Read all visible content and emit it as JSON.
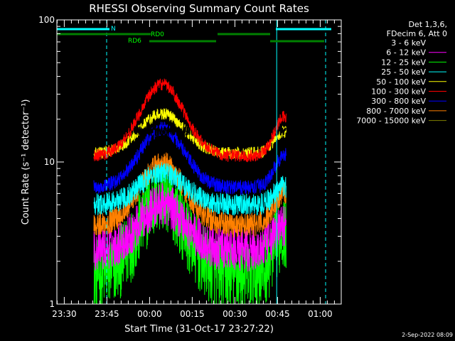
{
  "chart_data": {
    "type": "line",
    "title": "RHESSI Observing Summary Count Rates",
    "xlabel": "Start Time (31-Oct-17 23:27:22)",
    "ylabel": "Count Rate (s⁻¹ detector⁻¹)",
    "yscale": "log",
    "ylim": [
      1,
      100
    ],
    "y_ticks": [
      "1",
      "10",
      "100"
    ],
    "x_ticks": [
      "23:30",
      "23:45",
      "00:00",
      "00:15",
      "00:30",
      "00:45",
      "01:00"
    ],
    "x_tick_minutes": [
      2.6,
      17.6,
      32.6,
      47.6,
      62.6,
      77.6,
      92.6
    ],
    "xlim_minutes": [
      0,
      100
    ],
    "legend_header": [
      "Det 1,3,6,",
      "FDecim 6, Att 0"
    ],
    "series": [
      {
        "name": "3 - 6 keV",
        "color": "#000000",
        "base": 16.5,
        "peak": 1.0,
        "noise": 0.08
      },
      {
        "name": "6 - 12 keV",
        "color": "#ff00ff",
        "base": 2.4,
        "peak": 2.1,
        "noise": 0.35
      },
      {
        "name": "12 - 25 keV",
        "color": "#00ff00",
        "base": 1.6,
        "peak": 3.6,
        "noise": 0.6
      },
      {
        "name": "25 - 50 keV",
        "color": "#00ffff",
        "base": 5.0,
        "peak": 1.7,
        "noise": 0.18
      },
      {
        "name": "50 - 100 keV",
        "color": "#ffff00",
        "base": 11.5,
        "peak": 1.9,
        "noise": 0.1
      },
      {
        "name": "100 - 300 keV",
        "color": "#ff0000",
        "base": 11.0,
        "peak": 3.2,
        "noise": 0.1
      },
      {
        "name": "300 - 800 keV",
        "color": "#0000ff",
        "base": 6.6,
        "peak": 2.6,
        "noise": 0.12
      },
      {
        "name": "800 - 7000 keV",
        "color": "#ff8000",
        "base": 3.6,
        "peak": 2.7,
        "noise": 0.2
      },
      {
        "name": "7000 - 15000 keV",
        "color": "#808000",
        "base": 0,
        "peak": 1.0,
        "noise": 0.1
      }
    ],
    "data_start_minute": 13.0,
    "data_end_minute": 80.6,
    "peak_minute": 37.0,
    "state_bars": [
      {
        "label": "N",
        "color": "#00ffff",
        "segments": [
          [
            0,
            18.5
          ],
          [
            77,
            96.5
          ]
        ]
      },
      {
        "label": "RD0",
        "color": "#008000",
        "segments": [
          [
            0,
            33
          ],
          [
            56.5,
            75
          ]
        ]
      },
      {
        "label": "RD6",
        "color": "#008000",
        "segments": [
          [
            32.5,
            56
          ],
          [
            75,
            94
          ]
        ]
      }
    ],
    "vlines_minutes": [
      {
        "m": 0,
        "style": "solid"
      },
      {
        "m": 17.5,
        "style": "dash"
      },
      {
        "m": 77.3,
        "style": "solid"
      },
      {
        "m": 94.5,
        "style": "dash"
      }
    ]
  },
  "footer": {
    "timestamp": "2-Sep-2022 08:09"
  }
}
